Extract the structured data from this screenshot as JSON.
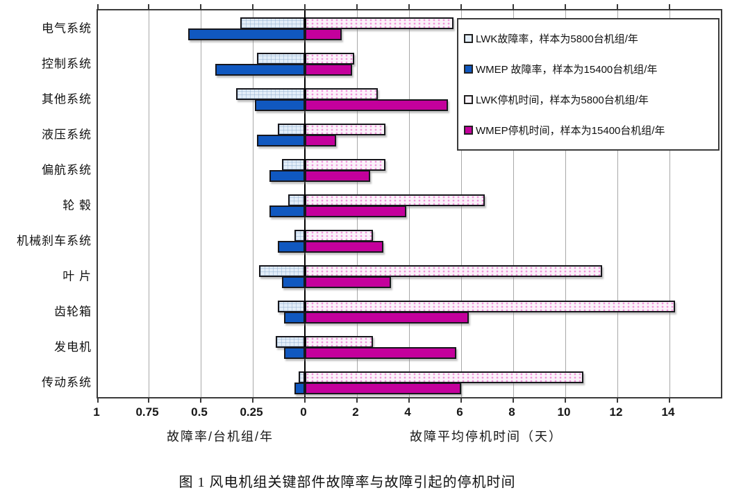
{
  "figure": {
    "caption": "图 1 风电机组关键部件故障率与故障引起的停机时间"
  },
  "chart_data": {
    "type": "bar",
    "subtype": "diverging-horizontal (tornado: failure rate left, downtime right)",
    "grid": true,
    "legend_position": "top-right",
    "categories": [
      "电气系统",
      "控制系统",
      "其他系统",
      "液压系统",
      "偏航系统",
      "轮 毂",
      "机械刹车系统",
      "叶 片",
      "齿轮箱",
      "发电机",
      "传动系统"
    ],
    "series": [
      {
        "name": "LWK故障率，样本为5800台机组/年",
        "side": "left",
        "axis": "failure-rate",
        "style": "light-blue-hatched",
        "values": [
          0.31,
          0.23,
          0.33,
          0.13,
          0.11,
          0.08,
          0.05,
          0.22,
          0.13,
          0.14,
          0.03
        ]
      },
      {
        "name": "WMEP 故障率，样本为15400台机组/年",
        "side": "left",
        "axis": "failure-rate",
        "style": "solid-blue",
        "values": [
          0.56,
          0.43,
          0.24,
          0.23,
          0.17,
          0.17,
          0.13,
          0.11,
          0.1,
          0.1,
          0.05
        ]
      },
      {
        "name": "LWK停机时间，样本为5800台机组/年",
        "side": "right",
        "axis": "downtime-days",
        "style": "light-pink-dotted",
        "values": [
          5.7,
          1.9,
          2.8,
          3.1,
          3.1,
          6.9,
          2.6,
          11.4,
          14.2,
          2.6,
          10.7
        ]
      },
      {
        "name": "WMEP停机时间，样本为15400台机组/年",
        "side": "right",
        "axis": "downtime-days",
        "style": "solid-magenta",
        "values": [
          1.4,
          1.8,
          5.5,
          1.2,
          2.5,
          3.9,
          3.0,
          3.3,
          6.3,
          5.8,
          6.0
        ]
      }
    ],
    "left_axis": {
      "label": "故障率/台机组/年",
      "tick_labels": [
        "1",
        "0.75",
        "0.5",
        "0.25",
        "0"
      ],
      "tick_values": [
        1,
        0.75,
        0.5,
        0.25,
        0
      ],
      "range": [
        1,
        0
      ]
    },
    "right_axis": {
      "label": "故障平均停机时间（天）",
      "tick_labels": [
        "2",
        "4",
        "6",
        "8",
        "10",
        "12",
        "14"
      ],
      "tick_values": [
        2,
        4,
        6,
        8,
        10,
        12,
        14
      ],
      "range": [
        0,
        16
      ]
    },
    "colors": {
      "wmep_failure_bar": "#1058c0",
      "wmep_downtime_bar": "#c4009c",
      "lwk_failure_fill": "#e2edf8",
      "lwk_downtime_fill": "#faf2f9",
      "lwk_dot_texture": "#ee80d4",
      "bar_border": "#17171c",
      "gridline": "#a8a8a8",
      "zero_line": "#000000"
    }
  }
}
